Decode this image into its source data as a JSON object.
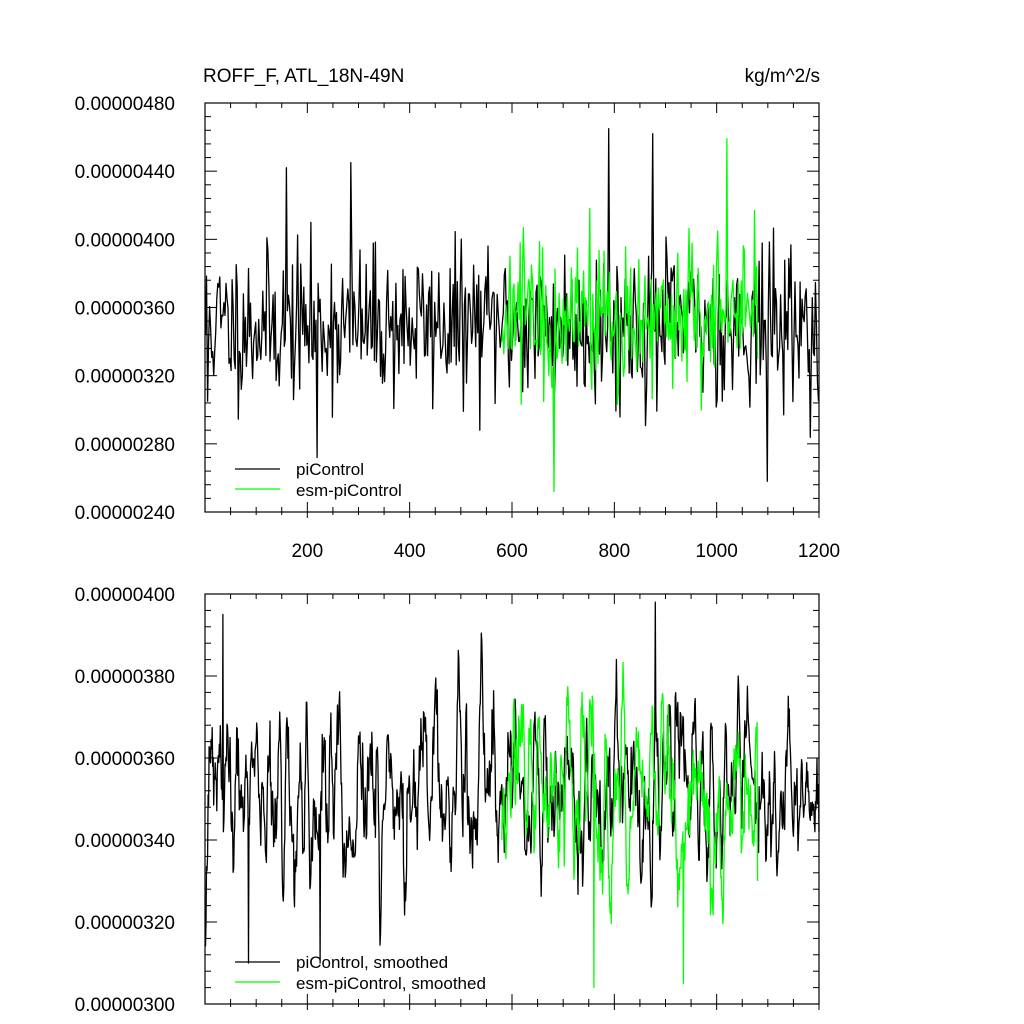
{
  "chart_data": [
    {
      "type": "line",
      "title": "ROFF_F, ATL_18N-49N",
      "units": "kg/m^2/s",
      "xlim": [
        0,
        1200
      ],
      "ylim": [
        2.4e-06,
        4.8e-06
      ],
      "x_ticks": [
        200,
        400,
        600,
        800,
        1000,
        1200
      ],
      "x_tick_labels": [
        "200",
        "400",
        "600",
        "800",
        "1000",
        "1200"
      ],
      "y_ticks": [
        2.4e-06,
        2.8e-06,
        3.2e-06,
        3.6e-06,
        4e-06,
        4.4e-06,
        4.8e-06
      ],
      "y_tick_labels": [
        "0.00000240",
        "0.00000280",
        "0.00000320",
        "0.00000360",
        "0.00000400",
        "0.00000440",
        "0.00000480"
      ],
      "legend_position": "bottom-left",
      "series": [
        {
          "name": "piControl",
          "color": "#000000",
          "x_start": 1,
          "x_end": 1200,
          "mean": 3.5e-06,
          "spread": 4e-07,
          "points": [
            [
              5,
              3.05e-06
            ],
            [
              160,
              4.42e-06
            ],
            [
              220,
              2.72e-06
            ],
            [
              285,
              4.45e-06
            ],
            [
              790,
              4.65e-06
            ],
            [
              875,
              4.62e-06
            ],
            [
              1100,
              2.58e-06
            ],
            [
              1200,
              3.05e-06
            ]
          ]
        },
        {
          "name": "esm-piControl",
          "color": "#00ff00",
          "x_start": 580,
          "x_end": 1080,
          "mean": 3.55e-06,
          "spread": 4e-07,
          "points": [
            [
              580,
              3.4e-06
            ],
            [
              682,
              2.52e-06
            ],
            [
              1020,
              4.59e-06
            ],
            [
              1080,
              3.3e-06
            ]
          ]
        }
      ]
    },
    {
      "type": "line",
      "xlim": [
        0,
        1200
      ],
      "ylim": [
        3e-06,
        4e-06
      ],
      "x_ticks": [
        200,
        400,
        600,
        800,
        1000,
        1200
      ],
      "y_ticks": [
        3e-06,
        3.2e-06,
        3.4e-06,
        3.6e-06,
        3.8e-06,
        4e-06
      ],
      "y_tick_labels": [
        "0.00000300",
        "0.00000320",
        "0.00000340",
        "0.00000360",
        "0.00000380",
        "0.00000400"
      ],
      "legend_position": "bottom-left",
      "series": [
        {
          "name": "piControl, smoothed",
          "color": "#000000",
          "x_start": 1,
          "x_end": 1200,
          "mean": 3.5e-06,
          "spread": 1.8e-07,
          "points": [
            [
              35,
              3.95e-06
            ],
            [
              85,
              3.1e-06
            ],
            [
              225,
              3.1e-06
            ],
            [
              880,
              3.98e-06
            ],
            [
              1200,
              3.42e-06
            ]
          ]
        },
        {
          "name": "esm-piControl, smoothed",
          "color": "#00ff00",
          "x_start": 580,
          "x_end": 1080,
          "mean": 3.52e-06,
          "spread": 1.8e-07,
          "points": [
            [
              580,
              3.4e-06
            ],
            [
              760,
              3.04e-06
            ],
            [
              935,
              3.05e-06
            ],
            [
              1080,
              3.3e-06
            ]
          ]
        }
      ]
    }
  ]
}
